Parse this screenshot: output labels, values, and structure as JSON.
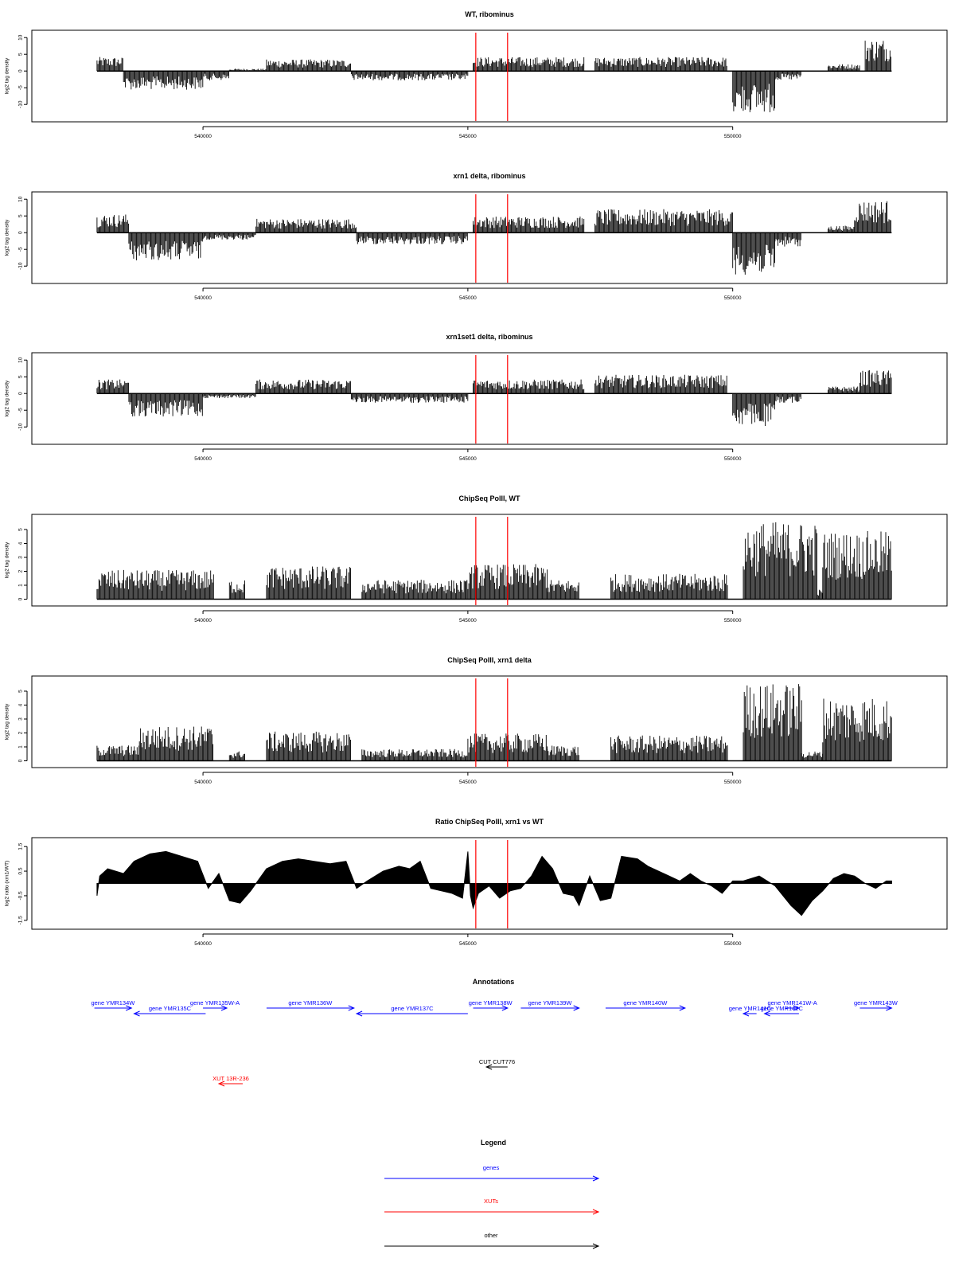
{
  "colors": {
    "gene": "#0000ff",
    "xut": "#ff0000",
    "other": "#000000",
    "marker": "#ff0000",
    "signal": "#000000"
  },
  "chart_data": [
    {
      "type": "bar",
      "title": "WT, ribominus",
      "ylabel": "log2 tag density",
      "xlabel": "",
      "xlim": [
        537400,
        553400
      ],
      "ylim": [
        -14,
        11
      ],
      "yticks": [
        "10",
        "5",
        "0",
        "-5",
        "-10"
      ],
      "ytick_values": [
        10,
        5,
        0,
        -5,
        -10
      ],
      "xticks": [
        "540000",
        "545000",
        "550000"
      ],
      "xtick_values": [
        540000,
        545000,
        550000
      ],
      "markers": [
        545150,
        545750
      ],
      "segments": [
        {
          "start": 538000,
          "end": 538500,
          "level": 3
        },
        {
          "start": 538500,
          "end": 540000,
          "level": -4
        },
        {
          "start": 540000,
          "end": 540500,
          "level": -2
        },
        {
          "start": 540500,
          "end": 541200,
          "level": 0.5
        },
        {
          "start": 541200,
          "end": 542800,
          "level": 2.5
        },
        {
          "start": 542800,
          "end": 545000,
          "level": -2
        },
        {
          "start": 545100,
          "end": 547200,
          "level": 3
        },
        {
          "start": 547400,
          "end": 549900,
          "level": 3
        },
        {
          "start": 550000,
          "end": 550800,
          "level": -9
        },
        {
          "start": 550800,
          "end": 551300,
          "level": -2
        },
        {
          "start": 551800,
          "end": 552400,
          "level": 1.5
        },
        {
          "start": 552500,
          "end": 553000,
          "level": 7
        }
      ]
    },
    {
      "type": "bar",
      "title": "xrn1 delta, ribominus",
      "ylabel": "log2 tag density",
      "xlabel": "",
      "xlim": [
        537400,
        553400
      ],
      "ylim": [
        -14,
        11
      ],
      "yticks": [
        "10",
        "5",
        "0",
        "-5",
        "-10"
      ],
      "ytick_values": [
        10,
        5,
        0,
        -5,
        -10
      ],
      "xticks": [
        "540000",
        "545000",
        "550000"
      ],
      "xtick_values": [
        540000,
        545000,
        550000
      ],
      "markers": [
        545150,
        545750
      ],
      "segments": [
        {
          "start": 538000,
          "end": 538600,
          "level": 4
        },
        {
          "start": 538600,
          "end": 540000,
          "level": -6
        },
        {
          "start": 540000,
          "end": 541000,
          "level": -1.5
        },
        {
          "start": 541000,
          "end": 542900,
          "level": 3
        },
        {
          "start": 542900,
          "end": 545000,
          "level": -2.5
        },
        {
          "start": 545100,
          "end": 547200,
          "level": 3.5
        },
        {
          "start": 547400,
          "end": 550000,
          "level": 5
        },
        {
          "start": 550000,
          "end": 550800,
          "level": -9
        },
        {
          "start": 550800,
          "end": 551300,
          "level": -3
        },
        {
          "start": 551800,
          "end": 552300,
          "level": 1.5
        },
        {
          "start": 552300,
          "end": 553000,
          "level": 7
        }
      ]
    },
    {
      "type": "bar",
      "title": "xrn1set1 delta, ribominus",
      "ylabel": "log2 tag density",
      "xlabel": "",
      "xlim": [
        537400,
        553400
      ],
      "ylim": [
        -14,
        11
      ],
      "yticks": [
        "10",
        "5",
        "0",
        "-5",
        "-10"
      ],
      "ytick_values": [
        10,
        5,
        0,
        -5,
        -10
      ],
      "xticks": [
        "540000",
        "545000",
        "550000"
      ],
      "xtick_values": [
        540000,
        545000,
        550000
      ],
      "markers": [
        545150,
        545750
      ],
      "segments": [
        {
          "start": 538000,
          "end": 538600,
          "level": 3
        },
        {
          "start": 538600,
          "end": 540000,
          "level": -5
        },
        {
          "start": 540000,
          "end": 541000,
          "level": -1
        },
        {
          "start": 541000,
          "end": 542800,
          "level": 3
        },
        {
          "start": 542800,
          "end": 545000,
          "level": -2
        },
        {
          "start": 545100,
          "end": 547200,
          "level": 3
        },
        {
          "start": 547400,
          "end": 549900,
          "level": 4
        },
        {
          "start": 550000,
          "end": 550800,
          "level": -7
        },
        {
          "start": 550800,
          "end": 551300,
          "level": -2
        },
        {
          "start": 551800,
          "end": 552400,
          "level": 1.5
        },
        {
          "start": 552400,
          "end": 553000,
          "level": 5
        }
      ]
    },
    {
      "type": "bar",
      "title": "ChipSeq PolII, WT",
      "ylabel": "log2 tag density",
      "xlabel": "",
      "xlim": [
        537400,
        553400
      ],
      "ylim": [
        -0.2,
        5.8
      ],
      "yticks": [
        "5",
        "4",
        "3",
        "2",
        "1",
        "0"
      ],
      "ytick_values": [
        5,
        4,
        3,
        2,
        1,
        0
      ],
      "xticks": [
        "540000",
        "545000",
        "550000"
      ],
      "xtick_values": [
        540000,
        545000,
        550000
      ],
      "markers": [
        545150,
        545750
      ],
      "segments": [
        {
          "start": 538000,
          "end": 540200,
          "level": 1.5
        },
        {
          "start": 540500,
          "end": 540800,
          "level": 1
        },
        {
          "start": 541200,
          "end": 542800,
          "level": 1.7
        },
        {
          "start": 543000,
          "end": 545000,
          "level": 1
        },
        {
          "start": 545000,
          "end": 546500,
          "level": 1.8
        },
        {
          "start": 546500,
          "end": 547100,
          "level": 1
        },
        {
          "start": 547700,
          "end": 549900,
          "level": 1.3
        },
        {
          "start": 550200,
          "end": 551600,
          "level": 4
        },
        {
          "start": 551600,
          "end": 551700,
          "level": 0.5
        },
        {
          "start": 551700,
          "end": 553000,
          "level": 3.5
        }
      ]
    },
    {
      "type": "bar",
      "title": "ChipSeq PolII, xrn1 delta",
      "ylabel": "log2 tag density",
      "xlabel": "",
      "xlim": [
        537400,
        553400
      ],
      "ylim": [
        -0.2,
        5.8
      ],
      "yticks": [
        "5",
        "4",
        "3",
        "2",
        "1",
        "0"
      ],
      "ytick_values": [
        5,
        4,
        3,
        2,
        1,
        0
      ],
      "xticks": [
        "540000",
        "545000",
        "550000"
      ],
      "xtick_values": [
        540000,
        545000,
        550000
      ],
      "markers": [
        545150,
        545750
      ],
      "segments": [
        {
          "start": 538000,
          "end": 538800,
          "level": 0.8
        },
        {
          "start": 538800,
          "end": 540200,
          "level": 1.8
        },
        {
          "start": 540500,
          "end": 540800,
          "level": 0.5
        },
        {
          "start": 541200,
          "end": 542800,
          "level": 1.5
        },
        {
          "start": 543000,
          "end": 545000,
          "level": 0.6
        },
        {
          "start": 545000,
          "end": 546500,
          "level": 1.4
        },
        {
          "start": 546500,
          "end": 547100,
          "level": 0.8
        },
        {
          "start": 547700,
          "end": 549900,
          "level": 1.3
        },
        {
          "start": 550200,
          "end": 551300,
          "level": 4
        },
        {
          "start": 551300,
          "end": 551700,
          "level": 0.5
        },
        {
          "start": 551700,
          "end": 553000,
          "level": 3.3
        }
      ]
    },
    {
      "type": "area",
      "title": "Ratio ChipSeq PolII, xrn1 vs WT",
      "ylabel": "log2 ratio (xrn1/WT)",
      "xlabel": "",
      "xlim": [
        537400,
        553400
      ],
      "ylim": [
        -1.7,
        1.7
      ],
      "yticks": [
        "1.5",
        "0.5",
        "-0.5",
        "-1.5"
      ],
      "ytick_values": [
        1.5,
        0.5,
        -0.5,
        -1.5
      ],
      "xticks": [
        "540000",
        "545000",
        "550000"
      ],
      "xtick_values": [
        540000,
        545000,
        550000
      ],
      "markers": [
        545150,
        545750
      ],
      "x": [
        538000,
        538050,
        538200,
        538500,
        538700,
        539000,
        539300,
        539600,
        539900,
        540100,
        540300,
        540500,
        540700,
        540900,
        541200,
        541500,
        541800,
        542100,
        542400,
        542700,
        542900,
        543100,
        543400,
        543700,
        543900,
        544100,
        544300,
        544500,
        544700,
        544900,
        545000,
        545050,
        545100,
        545200,
        545400,
        545600,
        545800,
        546000,
        546200,
        546400,
        546600,
        546800,
        547000,
        547100,
        547300,
        547500,
        547700,
        547900,
        548200,
        548400,
        548600,
        548800,
        549000,
        549200,
        549400,
        549600,
        549800,
        550000,
        550200,
        550500,
        550800,
        551100,
        551300,
        551500,
        551700,
        551900,
        552100,
        552300,
        552500,
        552700,
        552900,
        553000
      ],
      "values": [
        -0.5,
        0.3,
        0.6,
        0.4,
        0.9,
        1.2,
        1.3,
        1.1,
        0.9,
        -0.2,
        0.4,
        -0.7,
        -0.8,
        -0.3,
        0.6,
        0.9,
        1.0,
        0.9,
        0.8,
        0.9,
        -0.2,
        0.1,
        0.5,
        0.7,
        0.6,
        0.9,
        -0.2,
        -0.3,
        -0.4,
        -0.6,
        1.3,
        -0.5,
        -1.0,
        -0.4,
        -0.1,
        -0.6,
        -0.3,
        -0.2,
        0.3,
        1.1,
        0.6,
        -0.4,
        -0.5,
        -0.9,
        0.3,
        -0.7,
        -0.6,
        1.1,
        1.0,
        0.7,
        0.5,
        0.3,
        0.1,
        0.4,
        0.1,
        -0.1,
        -0.4,
        0.1,
        0.1,
        0.3,
        -0.1,
        -0.9,
        -1.3,
        -0.7,
        -0.3,
        0.2,
        0.4,
        0.3,
        0.0,
        -0.2,
        0.1,
        0.1
      ]
    }
  ],
  "annotations": {
    "title": "Annotations",
    "items": [
      {
        "label": "gene YMR134W",
        "start": 537950,
        "end": 538650,
        "dir": "right",
        "row": 0,
        "kind": "gene"
      },
      {
        "label": "gene YMR135C",
        "start": 538700,
        "end": 540050,
        "dir": "left",
        "row": 1,
        "kind": "gene"
      },
      {
        "label": "gene YMR135W-A",
        "start": 540000,
        "end": 540450,
        "dir": "right",
        "row": 0,
        "kind": "gene"
      },
      {
        "label": "gene YMR136W",
        "start": 541200,
        "end": 542850,
        "dir": "right",
        "row": 0,
        "kind": "gene"
      },
      {
        "label": "gene YMR137C",
        "start": 542900,
        "end": 545000,
        "dir": "left",
        "row": 1,
        "kind": "gene"
      },
      {
        "label": "gene YMR138W",
        "start": 545100,
        "end": 545750,
        "dir": "right",
        "row": 0,
        "kind": "gene"
      },
      {
        "label": "gene YMR139W",
        "start": 546000,
        "end": 547100,
        "dir": "right",
        "row": 0,
        "kind": "gene"
      },
      {
        "label": "gene YMR140W",
        "start": 547600,
        "end": 549100,
        "dir": "right",
        "row": 0,
        "kind": "gene"
      },
      {
        "label": "gene YMR141C",
        "start": 550200,
        "end": 550450,
        "dir": "left",
        "row": 1,
        "kind": "gene"
      },
      {
        "label": "gene YMR141W-A",
        "start": 551000,
        "end": 551250,
        "dir": "right",
        "row": 0,
        "kind": "gene"
      },
      {
        "label": "gene YMR142C",
        "start": 550600,
        "end": 551250,
        "dir": "left",
        "row": 1,
        "kind": "gene"
      },
      {
        "label": "gene YMR143W",
        "start": 552400,
        "end": 553000,
        "dir": "right",
        "row": 0,
        "kind": "gene"
      },
      {
        "label": "CUT CUT776",
        "start": 545350,
        "end": 545750,
        "dir": "left",
        "row": 3,
        "kind": "other"
      },
      {
        "label": "XUT 13R-236",
        "start": 540300,
        "end": 540750,
        "dir": "left",
        "row": 4,
        "kind": "xut"
      }
    ]
  },
  "legend": {
    "title": "Legend",
    "items": [
      {
        "label": "genes",
        "kind": "gene"
      },
      {
        "label": "XUTs",
        "kind": "xut"
      },
      {
        "label": "other",
        "kind": "other"
      }
    ]
  }
}
